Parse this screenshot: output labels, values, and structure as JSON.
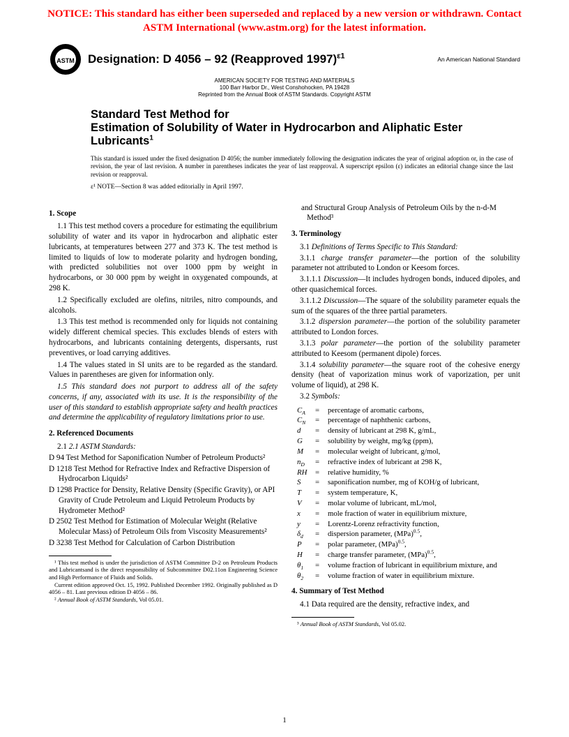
{
  "notice": "NOTICE: This standard has either been superseded and replaced by a new version or withdrawn. Contact ASTM International (www.astm.org) for the latest information.",
  "designation": "Designation: D 4056 – 92 (Reapproved 1997)",
  "designation_sup": "ε1",
  "national_std": "An American National Standard",
  "society": {
    "line1": "AMERICAN SOCIETY FOR TESTING AND MATERIALS",
    "line2": "100 Barr Harbor Dr., West Conshohocken, PA 19428",
    "line3": "Reprinted from the Annual Book of ASTM Standards. Copyright ASTM"
  },
  "title": {
    "line1": "Standard Test Method for",
    "line2": "Estimation of Solubility of Water in Hydrocarbon and Aliphatic Ester Lubricants"
  },
  "issuance": "This standard is issued under the fixed designation D 4056; the number immediately following the designation indicates the year of original adoption or, in the case of revision, the year of last revision. A number in parentheses indicates the year of last reapproval. A superscript epsilon (ε) indicates an editorial change since the last revision or reapproval.",
  "editorial_note_label": "ε¹ NOTE",
  "editorial_note": "—Section 8 was added editorially in April 1997.",
  "left": {
    "s1_head": "1. Scope",
    "p1_1": "1.1 This test method covers a procedure for estimating the equilibrium solubility of water and its vapor in hydrocarbon and aliphatic ester lubricants, at temperatures between 277 and 373 K. The test method is limited to liquids of low to moderate polarity and hydrogen bonding, with predicted solubilities not over 1000 ppm by weight in hydrocarbons, or 30 000 ppm by weight in oxygenated compounds, at 298 K.",
    "p1_2": "1.2 Specifically excluded are olefins, nitriles, nitro compounds, and alcohols.",
    "p1_3": "1.3 This test method is recommended only for liquids not containing widely different chemical species. This excludes blends of esters with hydrocarbons, and lubricants containing detergents, dispersants, rust preventives, or load carrying additives.",
    "p1_4": "1.4 The values stated in SI units are to be regarded as the standard. Values in parentheses are given for information only.",
    "p1_5": "1.5 This standard does not purport to address all of the safety concerns, if any, associated with its use. It is the responsibility of the user of this standard to establish appropriate safety and health practices and determine the applicability of regulatory limitations prior to use.",
    "s2_head": "2. Referenced Documents",
    "p2_1": "2.1 ASTM Standards:",
    "refs": [
      "D 94 Test Method for Saponification Number of Petroleum Products²",
      "D 1218 Test Method for Refractive Index and Refractive Dispersion of Hydrocarbon Liquids²",
      "D 1298 Practice for Density, Relative Density (Specific Gravity), or API Gravity of Crude Petroleum and Liquid Petroleum Products by Hydrometer Method²",
      "D 2502 Test Method for Estimation of Molecular Weight (Relative Molecular Mass) of Petroleum Oils from Viscosity Measurements²",
      "D 3238 Test Method for Calculation of Carbon Distribution"
    ],
    "fn1": "¹ This test method is under the jurisdiction of ASTM Committee D-2 on Petroleum Products and Lubricantsand is the direct responsibility of Subcommittee D02.11on Engineering Science and High Performance of Fluids and Solids.",
    "fn1b": "Current edition approved Oct. 15, 1992. Published December 1992. Originally published as D 4056 – 81. Last previous edition D 4056 – 86.",
    "fn2": "² Annual Book of ASTM Standards, Vol 05.01."
  },
  "right": {
    "cont": "and Structural Group Analysis of Petroleum Oils by the n-d-M Method³",
    "s3_head": "3. Terminology",
    "p3_1": "3.1 Definitions of Terms Specific to This Standard:",
    "p3_1_1": "3.1.1 charge transfer parameter—the portion of the solubility parameter not attributed to London or Keesom forces.",
    "p3_1_1_1": "3.1.1.1 Discussion—It includes hydrogen bonds, induced dipoles, and other quasichemical forces.",
    "p3_1_1_2": "3.1.1.2 Discussion—The square of the solubility parameter equals the sum of the squares of the three partial parameters.",
    "p3_1_2": "3.1.2 dispersion parameter—the portion of the solubility parameter attributed to London forces.",
    "p3_1_3": "3.1.3 polar parameter—the portion of the solubility parameter attributed to Keesom (permanent dipole) forces.",
    "p3_1_4": "3.1.4 solubility parameter—the square root of the cohesive energy density (heat of vaporization minus work of vaporization, per unit volume of liquid), at 298 K.",
    "p3_2": "3.2 Symbols:",
    "symbols": [
      {
        "s": "C_A",
        "d": "percentage of aromatic carbons,"
      },
      {
        "s": "C_N",
        "d": "percentage of naphthenic carbons,"
      },
      {
        "s": "d",
        "d": "density of lubricant at 298 K, g/mL,"
      },
      {
        "s": "G",
        "d": "solubility by weight, mg/kg (ppm),"
      },
      {
        "s": "M",
        "d": "molecular weight of lubricant, g/mol,"
      },
      {
        "s": "n_D",
        "d": "refractive index of lubricant at 298 K,"
      },
      {
        "s": "RH",
        "d": "relative humidity, %"
      },
      {
        "s": "S",
        "d": "saponification number, mg of KOH/g of lubricant,"
      },
      {
        "s": "T",
        "d": "system temperature, K,"
      },
      {
        "s": "V",
        "d": "molar volume of lubricant, mL/mol,"
      },
      {
        "s": "x",
        "d": "mole fraction of water in equilibrium mixture,"
      },
      {
        "s": "y",
        "d": "Lorentz-Lorenz refractivity function,"
      },
      {
        "s": "δ_d",
        "d": "dispersion parameter, (MPa)^0.5,"
      },
      {
        "s": "P",
        "d": "polar parameter, (MPa)^0.5,"
      },
      {
        "s": "H",
        "d": "charge transfer parameter, (MPa)^0.5,"
      },
      {
        "s": "θ_1",
        "d": "volume fraction of lubricant in equilibrium mixture, and"
      },
      {
        "s": "θ_2",
        "d": "volume fraction of water in equilibrium mixture."
      }
    ],
    "s4_head": "4. Summary of Test Method",
    "p4_1": "4.1 Data required are the density, refractive index, and",
    "fn3": "³ Annual Book of ASTM Standards, Vol 05.02."
  },
  "page_num": "1",
  "colors": {
    "notice": "#ff0000",
    "text": "#000000",
    "bg": "#ffffff"
  }
}
